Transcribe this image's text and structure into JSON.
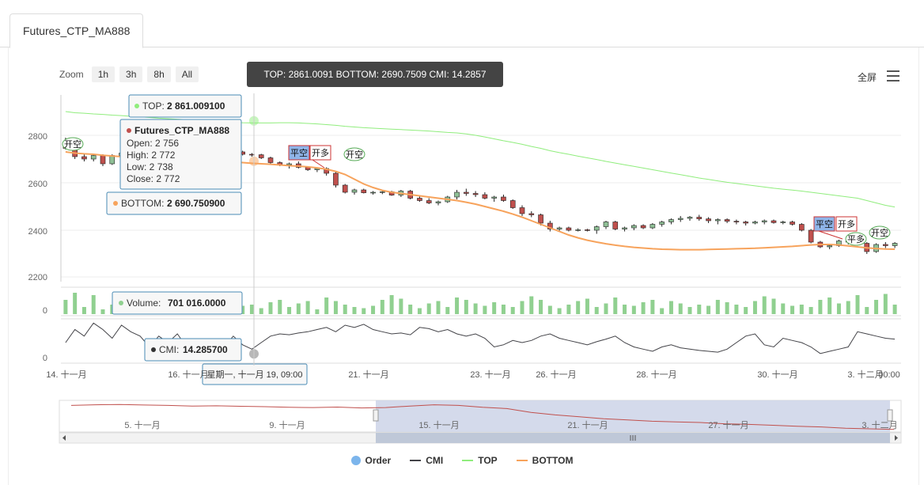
{
  "tab": {
    "label": "Futures_CTP_MA888"
  },
  "zoom": {
    "label": "Zoom",
    "buttons": [
      "1h",
      "3h",
      "8h",
      "All"
    ]
  },
  "toolbar": {
    "fullscreen": "全屏"
  },
  "crosshair": {
    "summary": "TOP: 2861.0091 BOTTOM: 2690.7509 CMI: 14.2857",
    "date": "星期一, 十一月 19, 09:00"
  },
  "tooltips": {
    "top": {
      "label": "TOP: ",
      "value": "2 861.009100"
    },
    "bottom": {
      "label": "BOTTOM: ",
      "value": "2 690.750900"
    },
    "ohlc": {
      "title": "Futures_CTP_MA888",
      "open": "Open: 2 756",
      "high": "High: 2 772",
      "low": "Low: 2 738",
      "close": "Close: 2 772"
    },
    "volume": {
      "label": "Volume: ",
      "value": "701 016.0000"
    },
    "cmi": {
      "label": "CMI: ",
      "value": "14.285700"
    }
  },
  "colors": {
    "top": "#90ed7d",
    "bottom": "#f7a35c",
    "cmi": "#434348",
    "order": "#7cb5ec",
    "up": "#8bbc8f",
    "down": "#c0504d",
    "volume": "#90d090",
    "navigator": "#c0504d"
  },
  "legend": [
    {
      "name": "Order",
      "icon": "dot",
      "color": "#7cb5ec"
    },
    {
      "name": "CMI",
      "icon": "line",
      "color": "#434348"
    },
    {
      "name": "TOP",
      "icon": "line",
      "color": "#90ed7d"
    },
    {
      "name": "BOTTOM",
      "icon": "line",
      "color": "#f7a35c"
    }
  ],
  "chart_data": {
    "type": "candlestick",
    "title": "",
    "price_ticks": [
      "2800",
      "2600",
      "2400",
      "2200"
    ],
    "price_ylim": [
      2200,
      2950
    ],
    "volume_ticks": [
      "0"
    ],
    "cmi_ticks": [
      "0"
    ],
    "x_tick_labels": [
      "14. 十一月",
      "16. 十一月",
      "21. 十一月",
      "23. 十一月",
      "26. 十一月",
      "28. 十一月",
      "30. 十一月",
      "3. 十二月",
      "00:00"
    ],
    "navigator_tick_labels": [
      "5. 十一月",
      "9. 十一月",
      "15. 十一月",
      "21. 十一月",
      "27. 十一月",
      "3. 十二月"
    ],
    "candles": [
      [
        2770,
        2790,
        2740,
        2745
      ],
      [
        2745,
        2760,
        2700,
        2710
      ],
      [
        2710,
        2725,
        2690,
        2700
      ],
      [
        2700,
        2720,
        2690,
        2715
      ],
      [
        2715,
        2720,
        2670,
        2680
      ],
      [
        2680,
        2720,
        2675,
        2715
      ],
      [
        2715,
        2735,
        2705,
        2725
      ],
      [
        2725,
        2750,
        2715,
        2740
      ],
      [
        2740,
        2760,
        2730,
        2750
      ],
      [
        2750,
        2765,
        2740,
        2755
      ],
      [
        2755,
        2775,
        2745,
        2770
      ],
      [
        2770,
        2790,
        2760,
        2780
      ],
      [
        2780,
        2800,
        2770,
        2790
      ],
      [
        2790,
        2805,
        2780,
        2795
      ],
      [
        2795,
        2810,
        2785,
        2790
      ],
      [
        2790,
        2800,
        2770,
        2775
      ],
      [
        2756,
        2772,
        2738,
        2772
      ],
      [
        2772,
        2775,
        2750,
        2755
      ],
      [
        2755,
        2760,
        2725,
        2730
      ],
      [
        2730,
        2735,
        2715,
        2720
      ],
      [
        2720,
        2725,
        2710,
        2718
      ],
      [
        2718,
        2722,
        2700,
        2705
      ],
      [
        2705,
        2710,
        2680,
        2685
      ],
      [
        2685,
        2690,
        2670,
        2675
      ],
      [
        2675,
        2685,
        2660,
        2680
      ],
      [
        2680,
        2690,
        2660,
        2665
      ],
      [
        2665,
        2670,
        2650,
        2655
      ],
      [
        2655,
        2665,
        2645,
        2660
      ],
      [
        2660,
        2665,
        2630,
        2640
      ],
      [
        2640,
        2645,
        2580,
        2590
      ],
      [
        2590,
        2595,
        2555,
        2560
      ],
      [
        2560,
        2575,
        2550,
        2570
      ],
      [
        2570,
        2575,
        2555,
        2558
      ],
      [
        2558,
        2565,
        2550,
        2560
      ],
      [
        2560,
        2568,
        2552,
        2562
      ],
      [
        2562,
        2566,
        2545,
        2548
      ],
      [
        2548,
        2570,
        2540,
        2565
      ],
      [
        2565,
        2570,
        2530,
        2535
      ],
      [
        2535,
        2545,
        2520,
        2525
      ],
      [
        2525,
        2535,
        2510,
        2515
      ],
      [
        2515,
        2525,
        2505,
        2520
      ],
      [
        2520,
        2545,
        2515,
        2540
      ],
      [
        2540,
        2570,
        2530,
        2560
      ],
      [
        2560,
        2575,
        2545,
        2555
      ],
      [
        2555,
        2565,
        2540,
        2550
      ],
      [
        2550,
        2560,
        2530,
        2535
      ],
      [
        2535,
        2545,
        2520,
        2540
      ],
      [
        2540,
        2550,
        2520,
        2525
      ],
      [
        2525,
        2530,
        2490,
        2495
      ],
      [
        2495,
        2505,
        2460,
        2470
      ],
      [
        2470,
        2480,
        2455,
        2465
      ],
      [
        2465,
        2470,
        2420,
        2430
      ],
      [
        2430,
        2440,
        2395,
        2405
      ],
      [
        2405,
        2415,
        2395,
        2410
      ],
      [
        2410,
        2415,
        2395,
        2400
      ],
      [
        2400,
        2408,
        2395,
        2402
      ],
      [
        2402,
        2406,
        2395,
        2400
      ],
      [
        2400,
        2420,
        2385,
        2415
      ],
      [
        2415,
        2440,
        2405,
        2435
      ],
      [
        2435,
        2440,
        2400,
        2405
      ],
      [
        2405,
        2415,
        2395,
        2410
      ],
      [
        2410,
        2425,
        2400,
        2420
      ],
      [
        2420,
        2425,
        2405,
        2410
      ],
      [
        2410,
        2430,
        2405,
        2425
      ],
      [
        2425,
        2440,
        2415,
        2435
      ],
      [
        2435,
        2450,
        2425,
        2445
      ],
      [
        2445,
        2460,
        2435,
        2450
      ],
      [
        2450,
        2460,
        2440,
        2455
      ],
      [
        2455,
        2465,
        2440,
        2448
      ],
      [
        2448,
        2455,
        2430,
        2440
      ],
      [
        2440,
        2450,
        2425,
        2445
      ],
      [
        2445,
        2450,
        2430,
        2438
      ],
      [
        2438,
        2445,
        2425,
        2435
      ],
      [
        2435,
        2440,
        2420,
        2430
      ],
      [
        2430,
        2440,
        2425,
        2435
      ],
      [
        2435,
        2445,
        2425,
        2440
      ],
      [
        2440,
        2445,
        2428,
        2432
      ],
      [
        2432,
        2440,
        2425,
        2435
      ],
      [
        2435,
        2440,
        2420,
        2425
      ],
      [
        2425,
        2430,
        2395,
        2400
      ],
      [
        2400,
        2405,
        2345,
        2350
      ],
      [
        2350,
        2355,
        2325,
        2330
      ],
      [
        2330,
        2340,
        2320,
        2335
      ],
      [
        2335,
        2360,
        2330,
        2355
      ],
      [
        2355,
        2360,
        2340,
        2350
      ],
      [
        2350,
        2355,
        2335,
        2345
      ],
      [
        2345,
        2350,
        2300,
        2310
      ],
      [
        2310,
        2345,
        2305,
        2340
      ],
      [
        2340,
        2350,
        2325,
        2335
      ],
      [
        2335,
        2350,
        2325,
        2345
      ]
    ],
    "series": [
      {
        "name": "TOP",
        "values": [
          2900,
          2895,
          2893,
          2890,
          2888,
          2885,
          2883,
          2880,
          2878,
          2875,
          2872,
          2870,
          2868,
          2866,
          2864,
          2862,
          2861,
          2858,
          2855,
          2853,
          2852,
          2852,
          2852,
          2853,
          2853,
          2852,
          2850,
          2848,
          2845,
          2842,
          2838,
          2835,
          2832,
          2830,
          2828,
          2826,
          2824,
          2822,
          2820,
          2818,
          2815,
          2812,
          2810,
          2806,
          2800,
          2793,
          2785,
          2777,
          2770,
          2762,
          2753,
          2745,
          2735,
          2727,
          2720,
          2712,
          2705,
          2698,
          2690,
          2683,
          2676,
          2669,
          2662,
          2655,
          2648,
          2641,
          2634,
          2627,
          2620,
          2614,
          2608,
          2602,
          2597,
          2592,
          2587,
          2582,
          2577,
          2573,
          2569,
          2565,
          2560,
          2555,
          2550,
          2545,
          2540,
          2535,
          2525,
          2515,
          2505,
          2498
        ]
      },
      {
        "name": "BOTTOM",
        "values": [
          2730,
          2725,
          2722,
          2720,
          2716,
          2713,
          2710,
          2706,
          2703,
          2700,
          2697,
          2695,
          2693,
          2692,
          2691,
          2691,
          2691,
          2690,
          2688,
          2685,
          2682,
          2680,
          2678,
          2675,
          2672,
          2670,
          2667,
          2663,
          2657,
          2648,
          2635,
          2615,
          2595,
          2580,
          2568,
          2560,
          2555,
          2550,
          2545,
          2540,
          2535,
          2530,
          2525,
          2518,
          2510,
          2500,
          2490,
          2480,
          2468,
          2455,
          2440,
          2425,
          2410,
          2395,
          2380,
          2368,
          2358,
          2350,
          2343,
          2337,
          2332,
          2328,
          2325,
          2322,
          2320,
          2319,
          2318,
          2318,
          2318,
          2319,
          2320,
          2321,
          2322,
          2323,
          2324,
          2326,
          2328,
          2330,
          2332,
          2335,
          2338,
          2340,
          2340,
          2338,
          2334,
          2330,
          2326,
          2323,
          2321,
          2320
        ]
      },
      {
        "name": "CMI",
        "values": [
          40,
          70,
          55,
          85,
          70,
          50,
          80,
          65,
          55,
          30,
          55,
          40,
          60,
          30,
          25,
          20,
          14,
          30,
          55,
          35,
          25,
          40,
          55,
          60,
          58,
          62,
          65,
          70,
          75,
          65,
          80,
          75,
          82,
          70,
          65,
          60,
          62,
          58,
          75,
          72,
          65,
          70,
          60,
          55,
          60,
          50,
          30,
          35,
          45,
          40,
          45,
          55,
          60,
          50,
          45,
          40,
          35,
          42,
          48,
          55,
          40,
          30,
          25,
          20,
          30,
          35,
          28,
          25,
          22,
          20,
          18,
          25,
          40,
          55,
          60,
          35,
          30,
          50,
          45,
          40,
          30,
          15,
          20,
          25,
          30,
          65,
          60,
          55,
          50,
          48
        ]
      },
      {
        "name": "Volume",
        "values": [
          60,
          90,
          30,
          80,
          20,
          40,
          55,
          70,
          25,
          20,
          30,
          60,
          45,
          35,
          20,
          40,
          70,
          60,
          55,
          35,
          40,
          25,
          50,
          60,
          30,
          45,
          55,
          20,
          70,
          55,
          40,
          30,
          25,
          35,
          60,
          80,
          65,
          40,
          25,
          45,
          55,
          30,
          70,
          60,
          45,
          35,
          50,
          40,
          30,
          55,
          75,
          60,
          35,
          25,
          40,
          55,
          65,
          30,
          45,
          70,
          40,
          35,
          50,
          60,
          25,
          55,
          45,
          30,
          40,
          35,
          60,
          50,
          40,
          30,
          55,
          75,
          65,
          45,
          35,
          40,
          30,
          60,
          70,
          45,
          55,
          80,
          30,
          60,
          85,
          40
        ]
      }
    ],
    "orders": [
      {
        "label": "开空"
      },
      {
        "label": "平空"
      },
      {
        "label": "开多"
      },
      {
        "label": "开空"
      },
      {
        "label": "平空"
      },
      {
        "label": "开多"
      },
      {
        "label": "平多"
      },
      {
        "label": "开空"
      }
    ],
    "navigator": [
      2705,
      2710,
      2712,
      2708,
      2705,
      2700,
      2702,
      2698,
      2695,
      2690,
      2688,
      2692,
      2685,
      2688,
      2700,
      2710,
      2705,
      2690,
      2680,
      2650,
      2630,
      2615,
      2600,
      2590,
      2580,
      2575,
      2570,
      2560,
      2555,
      2548,
      2540,
      2535,
      2525,
      2520,
      2515
    ]
  }
}
